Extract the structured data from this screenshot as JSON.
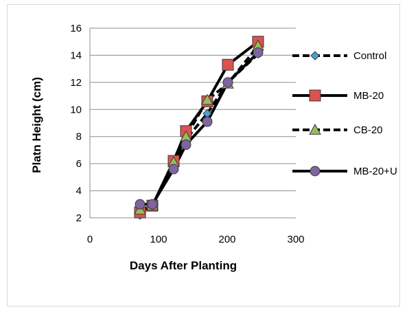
{
  "chart_data": {
    "type": "line",
    "title": "",
    "xlabel": "Days After Planting",
    "ylabel": "Platn Height (cm)",
    "xlim": [
      0,
      300
    ],
    "ylim": [
      2,
      16
    ],
    "x_ticks": [
      0,
      100,
      200,
      300
    ],
    "y_ticks": [
      2,
      4,
      6,
      8,
      10,
      12,
      14,
      16
    ],
    "grid": "horizontal",
    "legend_position": "right",
    "series": [
      {
        "name": "Control",
        "marker": "diamond",
        "line": "dashed",
        "marker_color": "#4a9fd8",
        "x": [
          73,
          91,
          122,
          140,
          171,
          201,
          245
        ],
        "y": [
          2.2,
          2.9,
          6.0,
          7.8,
          9.7,
          12.0,
          14.1
        ]
      },
      {
        "name": "MB-20",
        "marker": "square",
        "line": "solid",
        "marker_color": "#d9534f",
        "x": [
          73,
          91,
          122,
          140,
          171,
          201,
          245
        ],
        "y": [
          2.4,
          2.9,
          6.2,
          8.4,
          10.6,
          13.3,
          15.0
        ]
      },
      {
        "name": "CB-20",
        "marker": "triangle",
        "line": "dashed",
        "marker_color": "#9bbb59",
        "x": [
          73,
          91,
          122,
          140,
          171,
          201,
          245
        ],
        "y": [
          2.6,
          2.9,
          6.1,
          8.0,
          10.7,
          11.9,
          14.7
        ]
      },
      {
        "name": "MB-20+U",
        "marker": "circle",
        "line": "solid",
        "marker_color": "#8064a2",
        "x": [
          73,
          91,
          122,
          140,
          171,
          201,
          245
        ],
        "y": [
          3.0,
          3.0,
          5.6,
          7.4,
          9.1,
          12.0,
          14.2
        ]
      }
    ]
  }
}
